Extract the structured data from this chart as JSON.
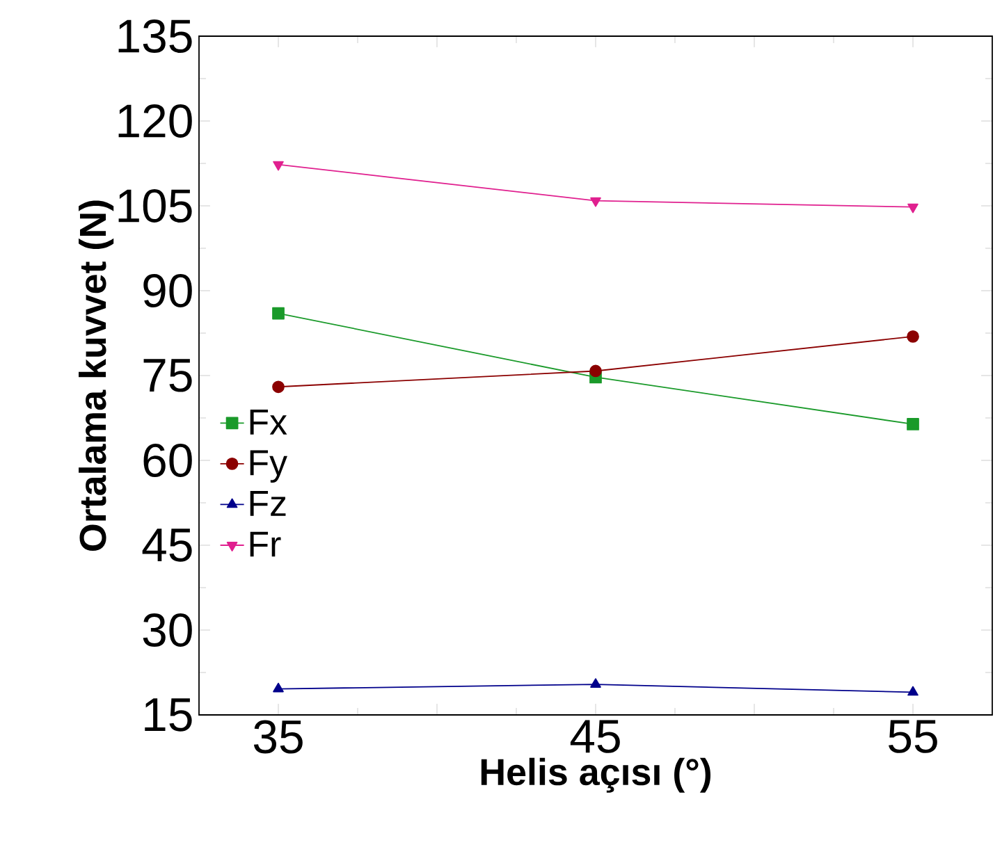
{
  "chart_data": {
    "type": "line",
    "xlabel": "Helis açısı (°)",
    "ylabel": "Ortalama kuvvet (N)",
    "x": [
      35,
      45,
      55
    ],
    "series": [
      {
        "name": "Fx",
        "color": "#1a9a2a",
        "marker": "square",
        "values": [
          86,
          74.7,
          66.4
        ]
      },
      {
        "name": "Fy",
        "color": "#8b0000",
        "marker": "circle",
        "values": [
          73,
          75.8,
          81.9
        ]
      },
      {
        "name": "Fz",
        "color": "#00008b",
        "marker": "triangle",
        "values": [
          19.6,
          20.4,
          19
        ]
      },
      {
        "name": "Fr",
        "color": "#e0208f",
        "marker": "triangle-down",
        "values": [
          112.3,
          105.9,
          104.8
        ]
      }
    ],
    "xlim": [
      32.5,
      57.5
    ],
    "xticks": [
      35,
      {
        "value": 40,
        "label": null
      },
      45,
      {
        "value": 50,
        "label": null
      },
      55
    ],
    "ylim": [
      15,
      135
    ],
    "yticks": [
      15,
      30,
      45,
      60,
      75,
      90,
      105,
      120,
      135
    ],
    "legend": "left",
    "grid": false
  }
}
